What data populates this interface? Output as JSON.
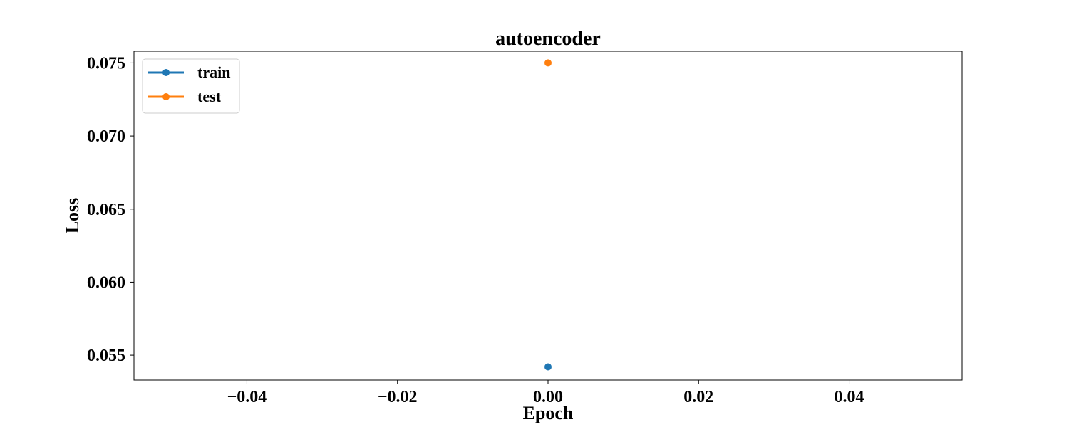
{
  "chart_data": {
    "type": "line",
    "title": "autoencoder",
    "xlabel": "Epoch",
    "ylabel": "Loss",
    "xlim": [
      -0.055,
      0.055
    ],
    "ylim": [
      0.0533,
      0.0758
    ],
    "xticks": [
      -0.04,
      -0.02,
      0.0,
      0.02,
      0.04
    ],
    "xtick_labels": [
      "−0.04",
      "−0.02",
      "0.00",
      "0.02",
      "0.04"
    ],
    "yticks": [
      0.055,
      0.06,
      0.065,
      0.07,
      0.075
    ],
    "ytick_labels": [
      "0.055",
      "0.060",
      "0.065",
      "0.070",
      "0.075"
    ],
    "grid": false,
    "legend_position": "top-left",
    "series": [
      {
        "name": "train",
        "color": "#1f77b4",
        "x": [
          0
        ],
        "y": [
          0.0542
        ]
      },
      {
        "name": "test",
        "color": "#ff7f0e",
        "x": [
          0
        ],
        "y": [
          0.075
        ]
      }
    ]
  }
}
